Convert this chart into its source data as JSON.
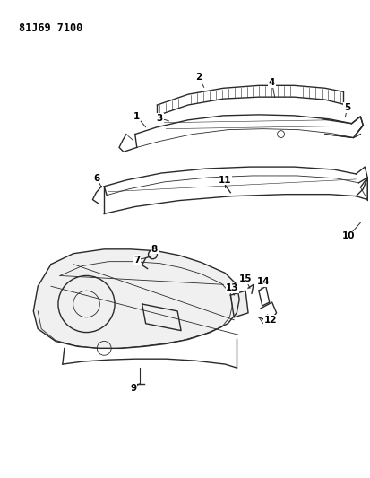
{
  "title": "81J69 7100",
  "bg_color": "#ffffff",
  "line_color": "#2a2a2a",
  "text_color": "#000000",
  "fig_width": 4.14,
  "fig_height": 5.33,
  "dpi": 100
}
